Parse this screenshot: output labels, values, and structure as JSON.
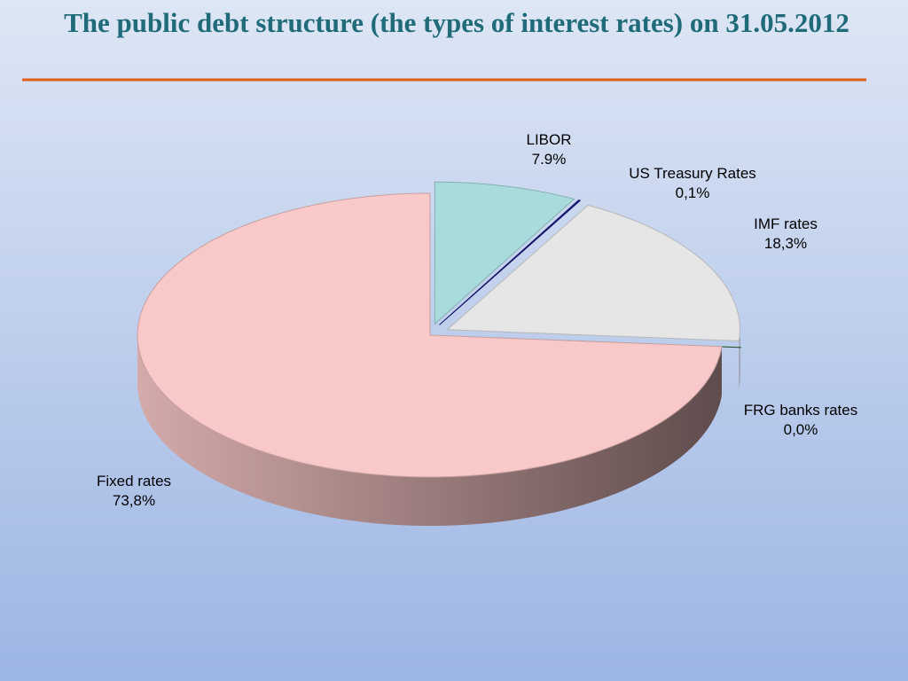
{
  "chart_data": {
    "type": "pie",
    "title": "The public debt structure (the types of interest rates) on 31.05.2012",
    "categories": [
      "LIBOR",
      "US Treasury Rates",
      "IMF rates",
      "FRG banks rates",
      "Fixed rates"
    ],
    "values": [
      7.9,
      0.1,
      18.3,
      0.0,
      73.8
    ],
    "value_labels": [
      "7.9%",
      "0,1%",
      "18,3%",
      "0,0%",
      "73,8%"
    ],
    "colors": [
      "#a8dcdc",
      "#1c1c80",
      "#e6e6e6",
      "#1b5e1b",
      "#f9c8c8"
    ]
  }
}
